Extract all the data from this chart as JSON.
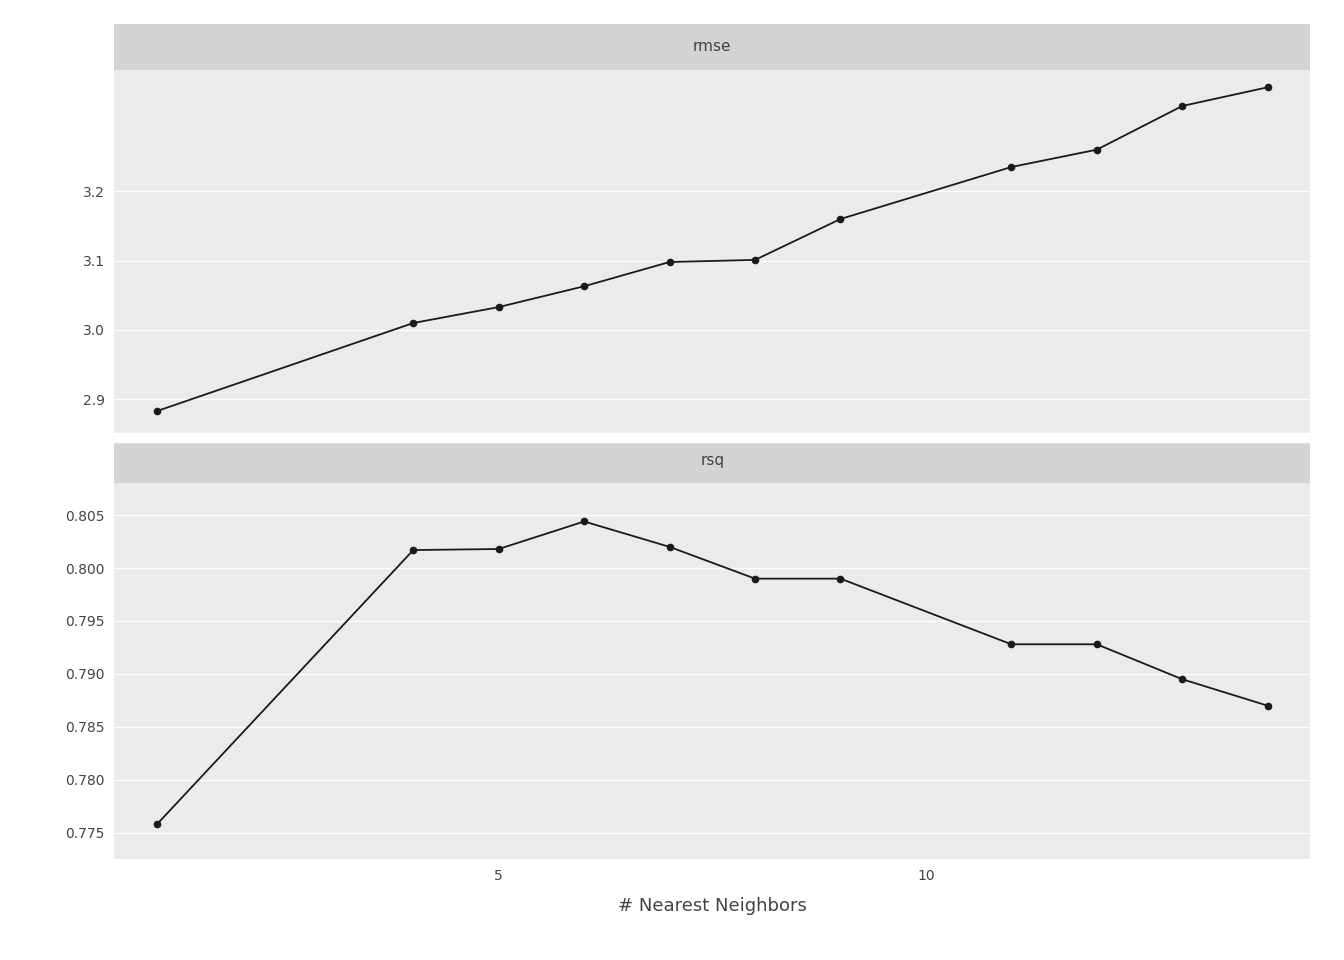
{
  "neighbors": [
    1,
    4,
    5,
    6,
    7,
    8,
    9,
    11,
    12,
    13,
    14
  ],
  "rmse": [
    2.883,
    3.01,
    3.033,
    3.063,
    3.098,
    3.101,
    3.16,
    3.235,
    3.26,
    3.323,
    3.35
  ],
  "rsq": [
    0.7758,
    0.8017,
    0.8018,
    0.8044,
    0.802,
    0.799,
    0.799,
    0.7928,
    0.7928,
    0.7895,
    0.787
  ],
  "rmse_yticks": [
    2.9,
    3.0,
    3.1,
    3.2
  ],
  "rsq_yticks": [
    0.775,
    0.78,
    0.785,
    0.79,
    0.795,
    0.8,
    0.805
  ],
  "xticks": [
    5,
    10
  ],
  "xlabel": "# Nearest Neighbors",
  "panel_labels": [
    "rmse",
    "rsq"
  ],
  "panel_bg_color": "#EBEBEB",
  "strip_bg_color": "#D3D3D3",
  "grid_color": "#FFFFFF",
  "line_color": "#1A1A1A",
  "marker_color": "#1A1A1A",
  "text_color": "#444444",
  "fig_bg_color": "#FFFFFF",
  "strip_fontsize": 11,
  "axis_fontsize": 13,
  "tick_fontsize": 10,
  "rmse_ylim": [
    2.845,
    3.375
  ],
  "rsq_ylim": [
    0.7725,
    0.808
  ]
}
